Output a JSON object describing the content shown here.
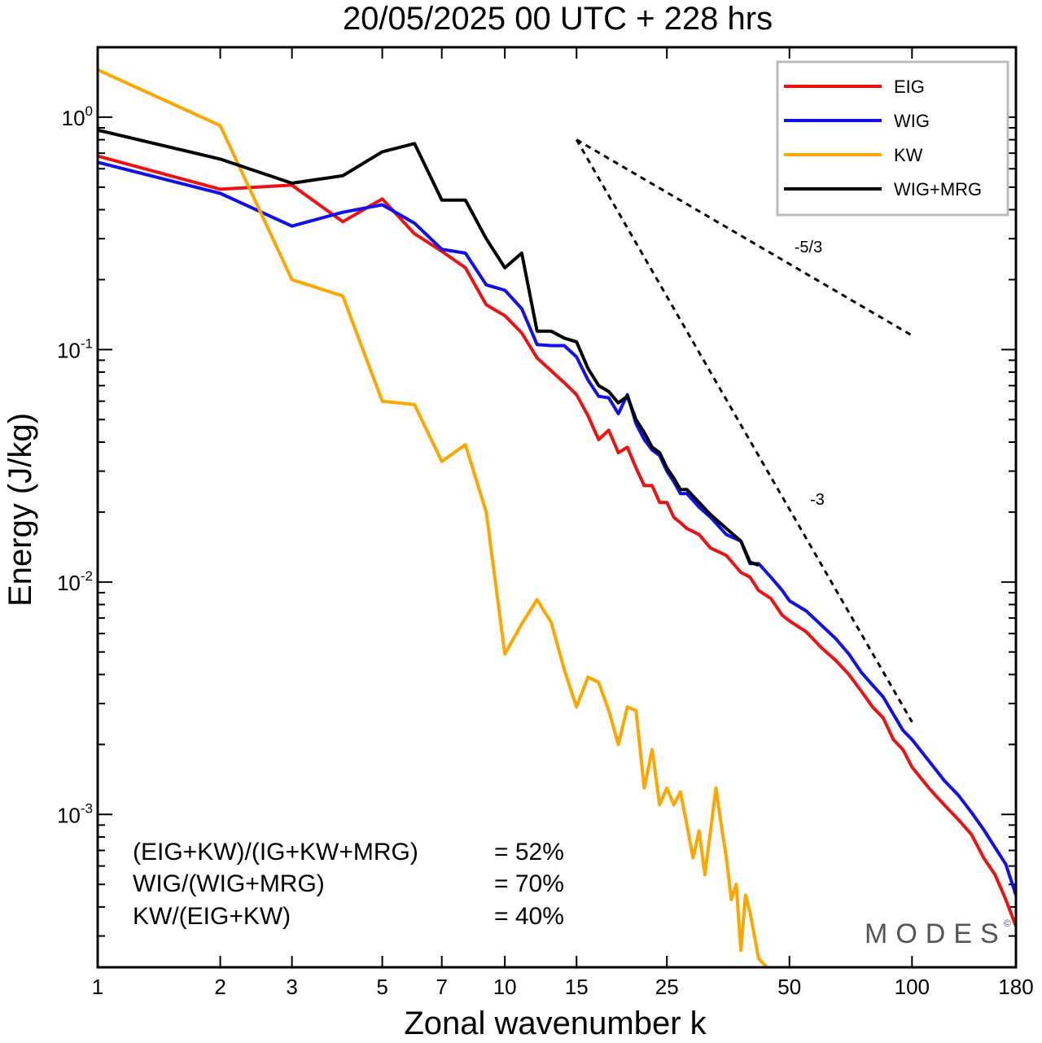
{
  "chart_data": {
    "type": "line",
    "title": "20/05/2025  00 UTC  + 228 hrs",
    "xlabel": "Zonal wavenumber k",
    "ylabel": "Energy (J/kg)",
    "xscale": "log",
    "yscale": "log",
    "xlim": [
      1,
      180
    ],
    "ylim": [
      0.00022,
      2.0
    ],
    "x_ticks": [
      1,
      2,
      3,
      5,
      7,
      10,
      15,
      25,
      50,
      100,
      180
    ],
    "x_tick_labels": [
      "1",
      "2",
      "3",
      "5",
      "7",
      "10",
      "15",
      "25",
      "50",
      "100",
      "180"
    ],
    "y_ticks": [
      {
        "value": 1.0,
        "base": "10",
        "exp": "0"
      },
      {
        "value": 0.1,
        "base": "10",
        "exp": "-1"
      },
      {
        "value": 0.01,
        "base": "10",
        "exp": "-2"
      },
      {
        "value": 0.001,
        "base": "10",
        "exp": "-3"
      }
    ],
    "grid": false,
    "legend_position": "top-right",
    "series": [
      {
        "name": "EIG",
        "color": "#ee1111",
        "points": [
          [
            1,
            0.68
          ],
          [
            2,
            0.49
          ],
          [
            3,
            0.51
          ],
          [
            4,
            0.355
          ],
          [
            5,
            0.445
          ],
          [
            6,
            0.315
          ],
          [
            7,
            0.265
          ],
          [
            8,
            0.225
          ],
          [
            9,
            0.156
          ],
          [
            10,
            0.14
          ],
          [
            11,
            0.118
          ],
          [
            12,
            0.092
          ],
          [
            13,
            0.081
          ],
          [
            14,
            0.072
          ],
          [
            15,
            0.064
          ],
          [
            16,
            0.052
          ],
          [
            17,
            0.041
          ],
          [
            18,
            0.045
          ],
          [
            19,
            0.036
          ],
          [
            20,
            0.038
          ],
          [
            21,
            0.031
          ],
          [
            22,
            0.026
          ],
          [
            23,
            0.026
          ],
          [
            24,
            0.022
          ],
          [
            25,
            0.022
          ],
          [
            26,
            0.019
          ],
          [
            27,
            0.018
          ],
          [
            28,
            0.017
          ],
          [
            30,
            0.016
          ],
          [
            32,
            0.014
          ],
          [
            35,
            0.013
          ],
          [
            38,
            0.011
          ],
          [
            40,
            0.0105
          ],
          [
            42,
            0.0092
          ],
          [
            45,
            0.0085
          ],
          [
            48,
            0.0072
          ],
          [
            50,
            0.0068
          ],
          [
            55,
            0.0061
          ],
          [
            60,
            0.0052
          ],
          [
            65,
            0.0046
          ],
          [
            70,
            0.004
          ],
          [
            75,
            0.0034
          ],
          [
            80,
            0.0029
          ],
          [
            85,
            0.0026
          ],
          [
            90,
            0.0021
          ],
          [
            95,
            0.0019
          ],
          [
            100,
            0.0016
          ],
          [
            110,
            0.0013
          ],
          [
            120,
            0.0011
          ],
          [
            130,
            0.00095
          ],
          [
            140,
            0.00082
          ],
          [
            150,
            0.00065
          ],
          [
            160,
            0.00055
          ],
          [
            170,
            0.00043
          ],
          [
            180,
            0.00033
          ]
        ]
      },
      {
        "name": "WIG",
        "color": "#1010ee",
        "points": [
          [
            1,
            0.64
          ],
          [
            2,
            0.47
          ],
          [
            3,
            0.34
          ],
          [
            4,
            0.39
          ],
          [
            5,
            0.42
          ],
          [
            6,
            0.35
          ],
          [
            7,
            0.27
          ],
          [
            8,
            0.26
          ],
          [
            9,
            0.19
          ],
          [
            10,
            0.18
          ],
          [
            11,
            0.15
          ],
          [
            12,
            0.105
          ],
          [
            13,
            0.104
          ],
          [
            14,
            0.104
          ],
          [
            15,
            0.093
          ],
          [
            16,
            0.074
          ],
          [
            17,
            0.063
          ],
          [
            18,
            0.062
          ],
          [
            19,
            0.053
          ],
          [
            20,
            0.064
          ],
          [
            21,
            0.048
          ],
          [
            22,
            0.041
          ],
          [
            23,
            0.037
          ],
          [
            24,
            0.035
          ],
          [
            25,
            0.03
          ],
          [
            26,
            0.027
          ],
          [
            27,
            0.024
          ],
          [
            28,
            0.024
          ],
          [
            30,
            0.021
          ],
          [
            32,
            0.019
          ],
          [
            35,
            0.016
          ],
          [
            38,
            0.015
          ],
          [
            40,
            0.012
          ],
          [
            42,
            0.012
          ],
          [
            45,
            0.0105
          ],
          [
            48,
            0.0092
          ],
          [
            50,
            0.0083
          ],
          [
            55,
            0.0075
          ],
          [
            60,
            0.0065
          ],
          [
            65,
            0.0057
          ],
          [
            70,
            0.0049
          ],
          [
            75,
            0.0041
          ],
          [
            80,
            0.0036
          ],
          [
            85,
            0.0032
          ],
          [
            90,
            0.0027
          ],
          [
            95,
            0.0023
          ],
          [
            100,
            0.0021
          ],
          [
            110,
            0.0017
          ],
          [
            120,
            0.0014
          ],
          [
            130,
            0.00121
          ],
          [
            140,
            0.00102
          ],
          [
            150,
            0.00086
          ],
          [
            160,
            0.00072
          ],
          [
            170,
            0.00061
          ],
          [
            180,
            0.00045
          ]
        ]
      },
      {
        "name": "KW",
        "color": "#ffa500",
        "points": [
          [
            1,
            1.6
          ],
          [
            2,
            0.92
          ],
          [
            3,
            0.2
          ],
          [
            4,
            0.17
          ],
          [
            5,
            0.06
          ],
          [
            6,
            0.058
          ],
          [
            7,
            0.033
          ],
          [
            8,
            0.039
          ],
          [
            9,
            0.02
          ],
          [
            10,
            0.0049
          ],
          [
            11,
            0.0066
          ],
          [
            12,
            0.0084
          ],
          [
            13,
            0.0067
          ],
          [
            14,
            0.0042
          ],
          [
            15,
            0.0029
          ],
          [
            16,
            0.0039
          ],
          [
            17,
            0.0037
          ],
          [
            18,
            0.0028
          ],
          [
            19,
            0.002
          ],
          [
            20,
            0.0029
          ],
          [
            21,
            0.0028
          ],
          [
            22,
            0.0013
          ],
          [
            23,
            0.0019
          ],
          [
            24,
            0.0011
          ],
          [
            25,
            0.0013
          ],
          [
            26,
            0.0011
          ],
          [
            27,
            0.00125
          ],
          [
            28,
            0.0009
          ],
          [
            29,
            0.00065
          ],
          [
            30,
            0.00085
          ],
          [
            31,
            0.00055
          ],
          [
            32,
            0.00085
          ],
          [
            33,
            0.0013
          ],
          [
            34,
            0.0009
          ],
          [
            35,
            0.00065
          ],
          [
            36,
            0.00043
          ],
          [
            37,
            0.0005
          ],
          [
            38,
            0.00026
          ],
          [
            39,
            0.00045
          ],
          [
            40,
            0.00038
          ],
          [
            42,
            0.00024
          ],
          [
            44,
            0.00022
          ]
        ]
      },
      {
        "name": "WIG+MRG",
        "color": "#000000",
        "points": [
          [
            1,
            0.88
          ],
          [
            2,
            0.66
          ],
          [
            3,
            0.52
          ],
          [
            4,
            0.56
          ],
          [
            5,
            0.71
          ],
          [
            6,
            0.77
          ],
          [
            7,
            0.44
          ],
          [
            8,
            0.44
          ],
          [
            9,
            0.3
          ],
          [
            10,
            0.225
          ],
          [
            11,
            0.26
          ],
          [
            12,
            0.12
          ],
          [
            13,
            0.12
          ],
          [
            14,
            0.112
          ],
          [
            15,
            0.108
          ],
          [
            16,
            0.083
          ],
          [
            17,
            0.07
          ],
          [
            18,
            0.066
          ],
          [
            19,
            0.059
          ],
          [
            20,
            0.063
          ],
          [
            21,
            0.05
          ],
          [
            22,
            0.044
          ],
          [
            23,
            0.038
          ],
          [
            24,
            0.036
          ],
          [
            25,
            0.031
          ],
          [
            26,
            0.028
          ],
          [
            27,
            0.025
          ],
          [
            28,
            0.025
          ],
          [
            30,
            0.022
          ],
          [
            32,
            0.0195
          ],
          [
            35,
            0.017
          ],
          [
            38,
            0.015
          ],
          [
            40,
            0.0122
          ],
          [
            42,
            0.0118
          ]
        ]
      }
    ],
    "slope_lines": [
      {
        "label": "-5/3",
        "k_start": 15,
        "e_start": 0.8,
        "k_end": 100,
        "e_end": 0.115
      },
      {
        "label": "-3",
        "k_start": 15,
        "e_start": 0.8,
        "k_end": 100,
        "e_end": 0.0025
      }
    ],
    "annotations": [
      {
        "left": "(EIG+KW)/(IG+KW+MRG)",
        "right": "= 52%"
      },
      {
        "left": "WIG/(WIG+MRG)",
        "right": "= 70%"
      },
      {
        "left": "KW/(EIG+KW)",
        "right": "= 40%"
      }
    ],
    "watermark": "MODES",
    "watermark_symbol": "©"
  }
}
